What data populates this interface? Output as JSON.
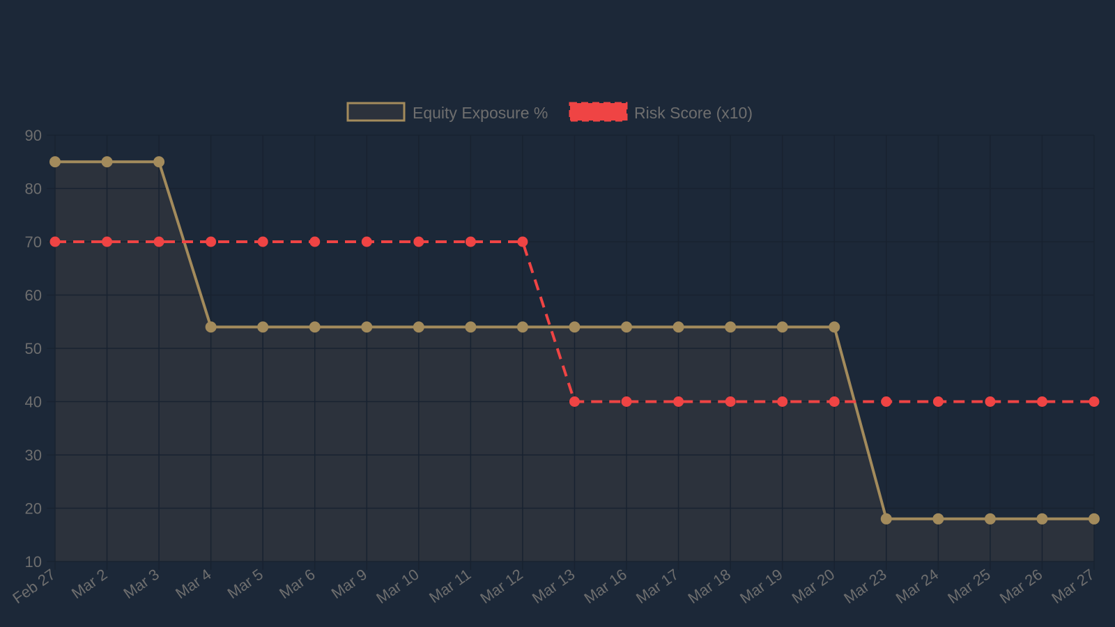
{
  "legend": {
    "items": [
      {
        "label": "Equity Exposure %",
        "color": "#a38b5c",
        "fill": "#2c323c",
        "style": "solid"
      },
      {
        "label": "Risk Score (x10)",
        "color": "#ef4444",
        "style": "dashed"
      }
    ]
  },
  "colors": {
    "background": "#1c2838",
    "grid": "#182230",
    "tick_text": "#6e6e6e",
    "equity_line": "#a38b5c",
    "equity_fill": "#2c323c",
    "risk_line": "#ef4444"
  },
  "chart_data": {
    "type": "line",
    "title": "",
    "xlabel": "",
    "ylabel": "",
    "ylim": [
      10,
      90
    ],
    "yticks": [
      10,
      20,
      30,
      40,
      50,
      60,
      70,
      80,
      90
    ],
    "grid": true,
    "legend_position": "top",
    "categories": [
      "Feb 27",
      "Mar 2",
      "Mar 3",
      "Mar 4",
      "Mar 5",
      "Mar 6",
      "Mar 9",
      "Mar 10",
      "Mar 11",
      "Mar 12",
      "Mar 13",
      "Mar 16",
      "Mar 17",
      "Mar 18",
      "Mar 19",
      "Mar 20",
      "Mar 23",
      "Mar 24",
      "Mar 25",
      "Mar 26",
      "Mar 27"
    ],
    "series": [
      {
        "name": "Equity Exposure %",
        "style": "solid",
        "filled": true,
        "values": [
          85,
          85,
          85,
          54,
          54,
          54,
          54,
          54,
          54,
          54,
          54,
          54,
          54,
          54,
          54,
          54,
          18,
          18,
          18,
          18,
          18
        ]
      },
      {
        "name": "Risk Score (x10)",
        "style": "dashed",
        "filled": false,
        "values": [
          70,
          70,
          70,
          70,
          70,
          70,
          70,
          70,
          70,
          70,
          40,
          40,
          40,
          40,
          40,
          40,
          40,
          40,
          40,
          40,
          40
        ]
      }
    ]
  }
}
